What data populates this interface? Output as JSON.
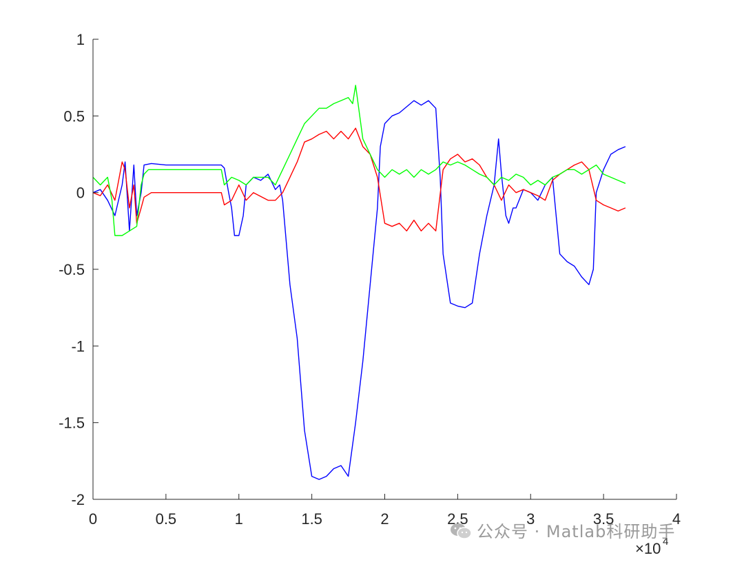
{
  "chart_data": {
    "type": "line",
    "title": "",
    "xlabel": "",
    "ylabel": "",
    "x_exponent_label": {
      "base": "×10",
      "power": "4"
    },
    "xlim": [
      0,
      4
    ],
    "ylim": [
      -2,
      1
    ],
    "x_ticks": [
      0,
      0.5,
      1,
      1.5,
      2,
      2.5,
      3,
      3.5,
      4
    ],
    "x_tick_labels": [
      "0",
      "0.5",
      "1",
      "1.5",
      "2",
      "2.5",
      "3",
      "3.5",
      "4"
    ],
    "y_ticks": [
      1,
      0.5,
      0,
      -0.5,
      -1,
      -1.5,
      -2
    ],
    "y_tick_labels": [
      "1",
      "0.5",
      "0",
      "-0.5",
      "-1",
      "-1.5",
      "-2"
    ],
    "grid": false,
    "legend": "none",
    "series": [
      {
        "color": "#0000ff",
        "x": [
          0,
          0.05,
          0.1,
          0.15,
          0.2,
          0.22,
          0.25,
          0.28,
          0.3,
          0.33,
          0.35,
          0.4,
          0.5,
          0.6,
          0.7,
          0.8,
          0.85,
          0.88,
          0.9,
          0.93,
          0.95,
          0.97,
          1.0,
          1.03,
          1.05,
          1.08,
          1.1,
          1.15,
          1.2,
          1.25,
          1.28,
          1.3,
          1.35,
          1.4,
          1.45,
          1.5,
          1.55,
          1.6,
          1.65,
          1.7,
          1.75,
          1.8,
          1.85,
          1.9,
          1.95,
          1.97,
          2.0,
          2.05,
          2.1,
          2.15,
          2.2,
          2.25,
          2.3,
          2.35,
          2.38,
          2.4,
          2.45,
          2.5,
          2.55,
          2.6,
          2.65,
          2.7,
          2.75,
          2.78,
          2.8,
          2.83,
          2.85,
          2.88,
          2.9,
          2.95,
          3.0,
          3.05,
          3.1,
          3.15,
          3.2,
          3.25,
          3.3,
          3.35,
          3.4,
          3.43,
          3.45,
          3.5,
          3.55,
          3.6,
          3.65
        ],
        "y": [
          0,
          0.02,
          -0.05,
          -0.15,
          0.05,
          0.2,
          -0.25,
          0.18,
          -0.15,
          0.0,
          0.18,
          0.19,
          0.18,
          0.18,
          0.18,
          0.18,
          0.18,
          0.18,
          0.16,
          0.0,
          -0.1,
          -0.28,
          -0.28,
          -0.15,
          0.05,
          0.08,
          0.1,
          0.08,
          0.12,
          0.02,
          0.05,
          -0.05,
          -0.6,
          -0.95,
          -1.55,
          -1.85,
          -1.87,
          -1.85,
          -1.8,
          -1.78,
          -1.85,
          -1.5,
          -1.1,
          -0.6,
          -0.1,
          0.3,
          0.45,
          0.5,
          0.52,
          0.56,
          0.6,
          0.57,
          0.6,
          0.55,
          0.1,
          -0.4,
          -0.72,
          -0.74,
          -0.75,
          -0.72,
          -0.4,
          -0.15,
          0.05,
          0.35,
          0.12,
          -0.15,
          -0.2,
          -0.1,
          -0.1,
          0.02,
          0.0,
          -0.05,
          0.05,
          0.1,
          -0.4,
          -0.45,
          -0.48,
          -0.55,
          -0.6,
          -0.5,
          0.0,
          0.15,
          0.25,
          0.28,
          0.3
        ]
      },
      {
        "color": "#ff0000",
        "x": [
          0,
          0.05,
          0.1,
          0.15,
          0.2,
          0.22,
          0.25,
          0.28,
          0.3,
          0.33,
          0.35,
          0.4,
          0.5,
          0.6,
          0.7,
          0.8,
          0.88,
          0.9,
          0.95,
          1.0,
          1.05,
          1.1,
          1.2,
          1.25,
          1.3,
          1.35,
          1.4,
          1.45,
          1.5,
          1.55,
          1.6,
          1.65,
          1.7,
          1.75,
          1.8,
          1.85,
          1.9,
          1.95,
          2.0,
          2.05,
          2.1,
          2.15,
          2.2,
          2.25,
          2.3,
          2.35,
          2.4,
          2.45,
          2.5,
          2.55,
          2.6,
          2.65,
          2.7,
          2.75,
          2.8,
          2.85,
          2.9,
          2.95,
          3.0,
          3.05,
          3.1,
          3.15,
          3.2,
          3.25,
          3.3,
          3.35,
          3.4,
          3.45,
          3.5,
          3.55,
          3.6,
          3.65
        ],
        "y": [
          0,
          -0.02,
          0.05,
          -0.05,
          0.2,
          0.15,
          -0.1,
          0.05,
          -0.2,
          -0.1,
          -0.03,
          0.0,
          0.0,
          0.0,
          0.0,
          0.0,
          0.0,
          -0.08,
          -0.05,
          0.05,
          -0.05,
          0.0,
          -0.05,
          -0.05,
          0.0,
          0.1,
          0.2,
          0.33,
          0.35,
          0.38,
          0.4,
          0.35,
          0.4,
          0.35,
          0.42,
          0.3,
          0.25,
          0.1,
          -0.2,
          -0.22,
          -0.2,
          -0.25,
          -0.18,
          -0.25,
          -0.2,
          -0.25,
          0.15,
          0.22,
          0.25,
          0.2,
          0.22,
          0.18,
          0.1,
          0.05,
          -0.05,
          0.05,
          0.0,
          0.02,
          0.0,
          -0.02,
          -0.05,
          0.08,
          0.12,
          0.15,
          0.18,
          0.2,
          0.15,
          -0.05,
          -0.08,
          -0.1,
          -0.12,
          -0.1
        ]
      },
      {
        "color": "#00ff00",
        "x": [
          0,
          0.05,
          0.1,
          0.13,
          0.15,
          0.2,
          0.25,
          0.3,
          0.33,
          0.35,
          0.38,
          0.4,
          0.5,
          0.6,
          0.7,
          0.8,
          0.88,
          0.9,
          0.95,
          1.0,
          1.05,
          1.1,
          1.2,
          1.25,
          1.3,
          1.35,
          1.4,
          1.45,
          1.5,
          1.55,
          1.6,
          1.65,
          1.7,
          1.75,
          1.78,
          1.8,
          1.85,
          1.9,
          1.95,
          2.0,
          2.05,
          2.1,
          2.15,
          2.2,
          2.25,
          2.3,
          2.35,
          2.4,
          2.45,
          2.5,
          2.55,
          2.6,
          2.65,
          2.7,
          2.75,
          2.8,
          2.85,
          2.9,
          2.95,
          3.0,
          3.05,
          3.1,
          3.15,
          3.2,
          3.25,
          3.3,
          3.35,
          3.4,
          3.45,
          3.5,
          3.55,
          3.6,
          3.65
        ],
        "y": [
          0.1,
          0.05,
          0.1,
          -0.05,
          -0.28,
          -0.28,
          -0.25,
          -0.22,
          0.05,
          0.12,
          0.15,
          0.15,
          0.15,
          0.15,
          0.15,
          0.15,
          0.15,
          0.05,
          0.1,
          0.08,
          0.05,
          0.1,
          0.1,
          0.05,
          0.15,
          0.25,
          0.35,
          0.45,
          0.5,
          0.55,
          0.55,
          0.58,
          0.6,
          0.62,
          0.58,
          0.7,
          0.35,
          0.25,
          0.15,
          0.1,
          0.15,
          0.12,
          0.15,
          0.1,
          0.15,
          0.12,
          0.15,
          0.2,
          0.18,
          0.2,
          0.18,
          0.15,
          0.12,
          0.1,
          0.05,
          0.1,
          0.08,
          0.12,
          0.1,
          0.05,
          0.08,
          0.05,
          0.1,
          0.12,
          0.15,
          0.15,
          0.12,
          0.15,
          0.18,
          0.12,
          0.1,
          0.08,
          0.06
        ]
      }
    ]
  },
  "watermark": {
    "text": "公众号 · Matlab科研助手",
    "icon": "wechat-icon"
  }
}
